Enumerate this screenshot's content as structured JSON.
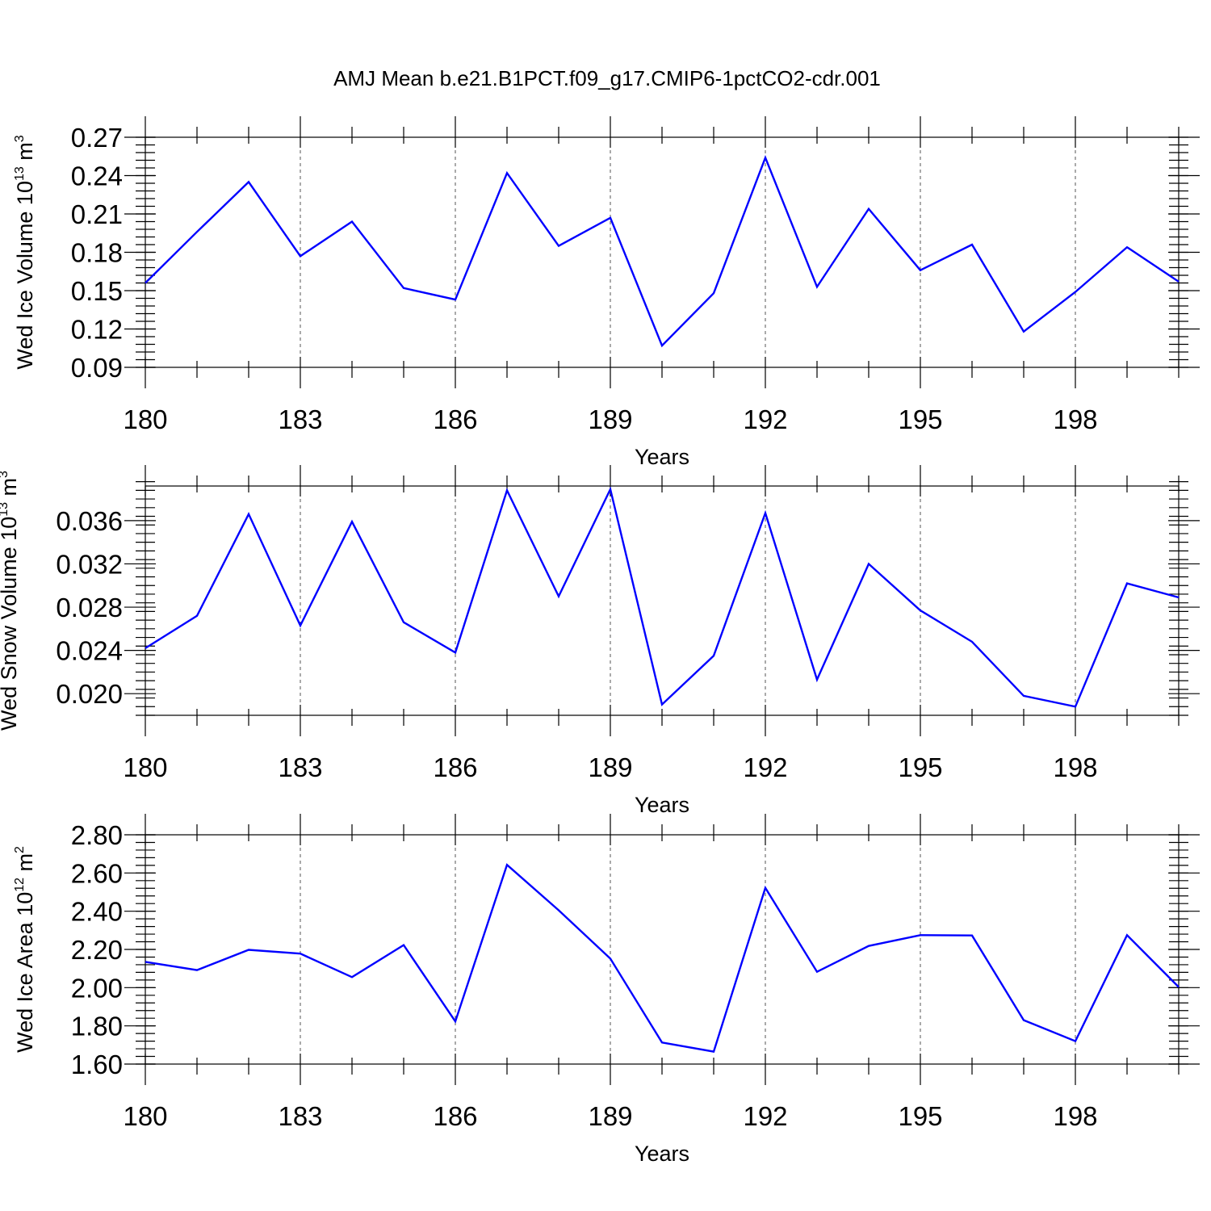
{
  "title": "AMJ Mean b.e21.B1PCT.f09_g17.CMIP6-1pctCO2-cdr.001",
  "chart_data": [
    {
      "type": "line",
      "name": "ice-volume",
      "xlabel": "Years",
      "ylabel_main": "Wed Ice Volume 10",
      "ylabel_exp": "13",
      "ylabel_unit": " m",
      "ylabel_unit_exp": "3",
      "xlim": [
        180,
        200
      ],
      "ylim": [
        0.09,
        0.27
      ],
      "y_minor_step": 0.006,
      "xticks": [
        180,
        183,
        186,
        189,
        192,
        195,
        198
      ],
      "xtick_labels": [
        "180",
        "183",
        "186",
        "189",
        "192",
        "195",
        "198"
      ],
      "yticks": [
        0.09,
        0.12,
        0.15,
        0.18,
        0.21,
        0.24,
        0.27
      ],
      "ytick_labels": [
        "0.09",
        "0.12",
        "0.15",
        "0.18",
        "0.21",
        "0.24",
        "0.27"
      ],
      "color": "#0000ff",
      "x": [
        180,
        181,
        182,
        183,
        184,
        185,
        186,
        187,
        188,
        189,
        190,
        191,
        192,
        193,
        194,
        195,
        196,
        197,
        198,
        199,
        200
      ],
      "values": [
        0.156,
        0.196,
        0.235,
        0.177,
        0.204,
        0.152,
        0.143,
        0.242,
        0.185,
        0.207,
        0.107,
        0.148,
        0.254,
        0.153,
        0.214,
        0.166,
        0.186,
        0.118,
        0.149,
        0.184,
        0.157
      ]
    },
    {
      "type": "line",
      "name": "snow-volume",
      "xlabel": "Years",
      "ylabel_main": "Wed Snow Volume 10",
      "ylabel_exp": "13",
      "ylabel_unit": " m",
      "ylabel_unit_exp": "3",
      "xlim": [
        180,
        200
      ],
      "ylim": [
        0.018,
        0.0392
      ],
      "y_minor_step": 0.0008,
      "xticks": [
        180,
        183,
        186,
        189,
        192,
        195,
        198
      ],
      "xtick_labels": [
        "180",
        "183",
        "186",
        "189",
        "192",
        "195",
        "198"
      ],
      "yticks": [
        0.02,
        0.024,
        0.028,
        0.032,
        0.036
      ],
      "ytick_labels": [
        "0.020",
        "0.024",
        "0.028",
        "0.032",
        "0.036"
      ],
      "color": "#0000ff",
      "x": [
        180,
        181,
        182,
        183,
        184,
        185,
        186,
        187,
        188,
        189,
        190,
        191,
        192,
        193,
        194,
        195,
        196,
        197,
        198,
        199,
        200
      ],
      "values": [
        0.0242,
        0.0272,
        0.0366,
        0.0263,
        0.0359,
        0.0266,
        0.0238,
        0.0388,
        0.029,
        0.0389,
        0.019,
        0.0235,
        0.0367,
        0.0213,
        0.032,
        0.0277,
        0.0248,
        0.0198,
        0.0188,
        0.0302,
        0.0289
      ]
    },
    {
      "type": "line",
      "name": "ice-area",
      "xlabel": "Years",
      "ylabel_main": "Wed Ice Area 10",
      "ylabel_exp": "12",
      "ylabel_unit": " m",
      "ylabel_unit_exp": "2",
      "xlim": [
        180,
        200
      ],
      "ylim": [
        1.6,
        2.8
      ],
      "y_minor_step": 0.04,
      "xticks": [
        180,
        183,
        186,
        189,
        192,
        195,
        198
      ],
      "xtick_labels": [
        "180",
        "183",
        "186",
        "189",
        "192",
        "195",
        "198"
      ],
      "yticks": [
        1.6,
        1.8,
        2.0,
        2.2,
        2.4,
        2.6,
        2.8
      ],
      "ytick_labels": [
        "1.60",
        "1.80",
        "2.00",
        "2.20",
        "2.40",
        "2.60",
        "2.80"
      ],
      "color": "#0000ff",
      "x": [
        180,
        181,
        182,
        183,
        184,
        185,
        186,
        187,
        188,
        189,
        190,
        191,
        192,
        193,
        194,
        195,
        196,
        197,
        198,
        199,
        200
      ],
      "values": [
        2.135,
        2.092,
        2.198,
        2.178,
        2.055,
        2.223,
        1.823,
        2.643,
        2.405,
        2.152,
        1.713,
        1.665,
        2.522,
        2.083,
        2.218,
        2.275,
        2.273,
        1.83,
        1.72,
        2.275,
        2.003
      ]
    }
  ]
}
